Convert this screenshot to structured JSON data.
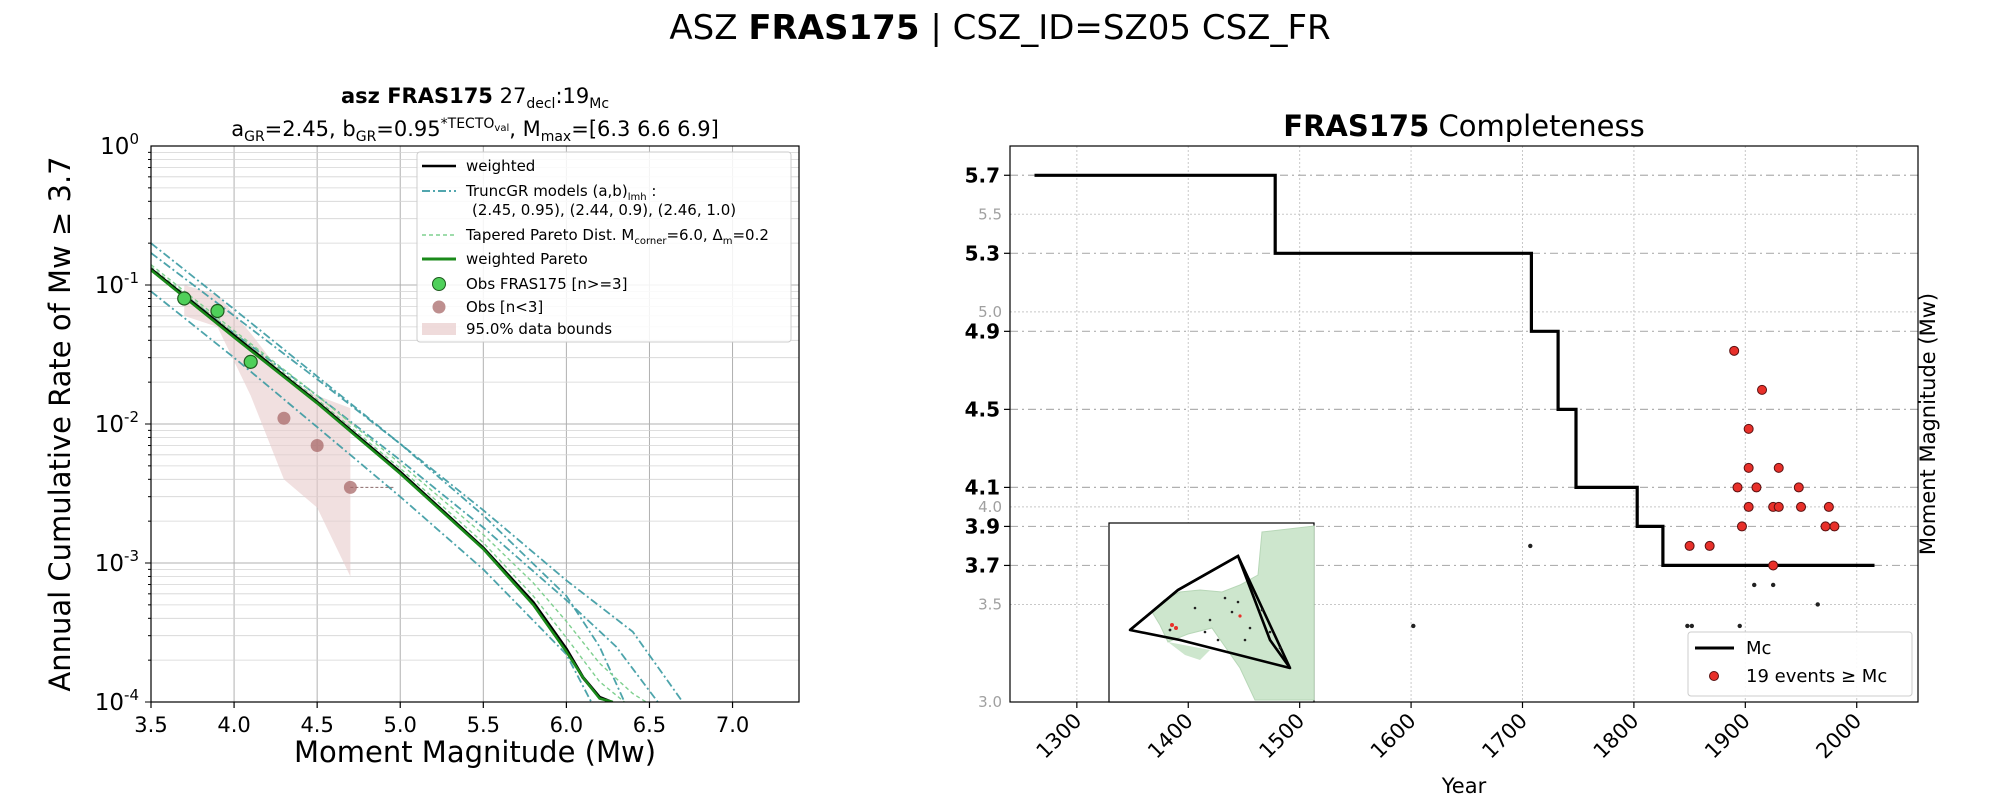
{
  "suptitle": {
    "prefix": "ASZ",
    "bold": "FRAS175",
    "suffix": "| CSZ_ID=SZ05 CSZ_FR"
  },
  "colors": {
    "weighted": "#000000",
    "trunc": "#3a9aa2",
    "tapered": "#7fd08f",
    "pareto": "#1a8a1a",
    "obs": "#4fd05a",
    "obs_small": "#a86a6a",
    "band": "#e8cccc",
    "events": "#e8302a",
    "map_fill": "#cde6cd"
  },
  "chart_data": [
    {
      "type": "line",
      "title_bold": "asz FRAS175",
      "title_rest": "27",
      "title_sub1": "decl",
      "title_mid": ":19",
      "title_sub2": "Mc",
      "subtitle": "a_GR=2.45, b_GR=0.95^*TECTO_val, M_max=[6.3 6.6 6.9]",
      "xlabel": "Moment Magnitude (Mw)",
      "ylabel": "Annual Cumulative Rate of Mw  ≥  3.7",
      "xlim": [
        3.5,
        7.4
      ],
      "ylim": [
        0.0001,
        1
      ],
      "yscale": "log",
      "xticks": [
        "3.5",
        "4.0",
        "4.5",
        "5.0",
        "5.5",
        "6.0",
        "6.5",
        "7.0"
      ],
      "grid": true,
      "legend_position": "upper-right",
      "legend": [
        {
          "label": "weighted",
          "style": "weighted"
        },
        {
          "label": "TruncGR models (a,b)",
          "sub": "lmh",
          "tail": " :",
          "line2": "(2.45, 0.95), (2.44, 0.9), (2.46, 1.0)",
          "style": "trunc"
        },
        {
          "label": "Tapered Pareto Dist. M",
          "sub": "corner",
          "tail": "=6.0, Δ",
          "sub2": "m",
          "tail2": "=0.2",
          "style": "tapered"
        },
        {
          "label": "weighted Pareto",
          "style": "pareto"
        },
        {
          "label": "Obs FRAS175 [n>=3]",
          "style": "obs"
        },
        {
          "label": "Obs [n<3]",
          "style": "obs_small"
        },
        {
          "label": "95.0% data bounds",
          "style": "band"
        }
      ],
      "series": [
        {
          "name": "weighted",
          "x": [
            3.5,
            4.0,
            4.5,
            5.0,
            5.5,
            5.8,
            6.0,
            6.1,
            6.2,
            6.27
          ],
          "y": [
            0.13,
            0.043,
            0.0143,
            0.0045,
            0.00128,
            0.00052,
            0.00024,
            0.00015,
            0.000108,
            0.0001
          ]
        },
        {
          "name": "TruncGR models",
          "x": [
            3.5,
            4.0,
            4.5,
            5.0,
            5.5,
            6.0,
            6.2,
            6.35
          ],
          "y": [
            0.2,
            0.067,
            0.022,
            0.0072,
            0.0022,
            0.00058,
            0.00025,
            0.0001
          ]
        },
        {
          "name": "TruncGR models",
          "x": [
            3.5,
            4.0,
            4.5,
            5.0,
            5.5,
            6.0,
            6.3,
            6.55
          ],
          "y": [
            0.13,
            0.045,
            0.016,
            0.0055,
            0.0018,
            0.00054,
            0.00025,
            0.0001
          ]
        },
        {
          "name": "TruncGR models",
          "x": [
            3.5,
            4.0,
            4.5,
            5.0,
            5.5,
            6.0,
            6.4,
            6.7
          ],
          "y": [
            0.17,
            0.06,
            0.021,
            0.0072,
            0.0024,
            0.00075,
            0.00032,
            0.0001
          ]
        },
        {
          "name": "TruncGR models",
          "x": [
            3.5,
            4.0,
            4.5,
            5.0,
            5.5,
            6.0,
            6.15
          ],
          "y": [
            0.09,
            0.03,
            0.0095,
            0.003,
            0.0009,
            0.00022,
            0.0001
          ]
        },
        {
          "name": "Tapered Pareto Dist.",
          "x": [
            3.5,
            4.0,
            4.5,
            5.0,
            5.5,
            5.8,
            6.0,
            6.2,
            6.35
          ],
          "y": [
            0.135,
            0.045,
            0.015,
            0.0048,
            0.0014,
            0.00058,
            0.00029,
            0.00014,
            0.0001
          ]
        },
        {
          "name": "Tapered Pareto Dist.",
          "x": [
            3.5,
            4.0,
            4.5,
            5.0,
            5.5,
            5.8,
            6.0,
            6.2,
            6.4,
            6.48
          ],
          "y": [
            0.14,
            0.047,
            0.016,
            0.0052,
            0.0016,
            0.00072,
            0.00038,
            0.00019,
            0.000115,
            0.0001
          ]
        },
        {
          "name": "weighted Pareto",
          "x": [
            3.5,
            4.0,
            4.5,
            5.0,
            5.5,
            5.8,
            6.0,
            6.1,
            6.2,
            6.28
          ],
          "y": [
            0.128,
            0.042,
            0.0141,
            0.0044,
            0.00126,
            0.0005,
            0.00023,
            0.00015,
            0.000106,
            0.0001
          ]
        }
      ],
      "observations": [
        {
          "x": 3.7,
          "y": 0.08,
          "group": "obs"
        },
        {
          "x": 3.9,
          "y": 0.065,
          "group": "obs"
        },
        {
          "x": 4.1,
          "y": 0.028,
          "group": "obs"
        },
        {
          "x": 4.3,
          "y": 0.011,
          "group": "obs_small"
        },
        {
          "x": 4.5,
          "y": 0.007,
          "group": "obs_small"
        },
        {
          "x": 4.7,
          "y": 0.0035,
          "group": "obs_small"
        }
      ],
      "bounds": {
        "x": [
          3.7,
          3.9,
          4.1,
          4.3,
          4.5,
          4.7
        ],
        "upper": [
          0.1,
          0.085,
          0.045,
          0.022,
          0.016,
          0.013
        ],
        "lower": [
          0.06,
          0.05,
          0.016,
          0.004,
          0.0025,
          0.0008
        ]
      }
    },
    {
      "type": "scatter",
      "title_bold": "FRAS175",
      "title_rest": "Completeness",
      "xlabel": "Year",
      "ylabel": "Moment Magnitude (Mw)",
      "xlim": [
        1240,
        2055
      ],
      "ylim": [
        3.0,
        5.85
      ],
      "xticks": [
        "1300",
        "1400",
        "1500",
        "1600",
        "1700",
        "1800",
        "1900",
        "2000"
      ],
      "yticks_light": [
        "3.0",
        "3.5",
        "4.0",
        "5.0",
        "5.5"
      ],
      "yticks_bold": [
        "3.7",
        "3.9",
        "4.1",
        "4.5",
        "4.9",
        "5.3",
        "5.7"
      ],
      "legend_position": "lower-right",
      "legend": [
        {
          "label": "Mc",
          "style": "line"
        },
        {
          "label": "19 events  ≥  Mc",
          "style": "events"
        }
      ],
      "mc_steps": [
        [
          1262,
          5.7
        ],
        [
          1478,
          5.7
        ],
        [
          1478,
          5.3
        ],
        [
          1708,
          5.3
        ],
        [
          1708,
          4.9
        ],
        [
          1732,
          4.9
        ],
        [
          1732,
          4.5
        ],
        [
          1748,
          4.5
        ],
        [
          1748,
          4.1
        ],
        [
          1803,
          4.1
        ],
        [
          1803,
          3.9
        ],
        [
          1826,
          3.9
        ],
        [
          1826,
          3.7
        ],
        [
          2016,
          3.7
        ]
      ],
      "events": [
        [
          1890,
          4.8
        ],
        [
          1915,
          4.6
        ],
        [
          1903,
          4.4
        ],
        [
          1903,
          4.2
        ],
        [
          1930,
          4.2
        ],
        [
          1893,
          4.1
        ],
        [
          1910,
          4.1
        ],
        [
          1948,
          4.1
        ],
        [
          1903,
          4.0
        ],
        [
          1925,
          4.0
        ],
        [
          1930,
          4.0
        ],
        [
          1950,
          4.0
        ],
        [
          1975,
          4.0
        ],
        [
          1897,
          3.9
        ],
        [
          1972,
          3.9
        ],
        [
          1980,
          3.9
        ],
        [
          1850,
          3.8
        ],
        [
          1868,
          3.8
        ],
        [
          1925,
          3.7
        ]
      ],
      "small_events": [
        [
          1602,
          3.39
        ],
        [
          1707,
          3.8
        ],
        [
          1848,
          3.39
        ],
        [
          1852,
          3.39
        ],
        [
          1895,
          3.39
        ],
        [
          1908,
          3.6
        ],
        [
          1925,
          3.6
        ],
        [
          1965,
          3.5
        ]
      ],
      "inset": {
        "label": "map"
      }
    }
  ]
}
